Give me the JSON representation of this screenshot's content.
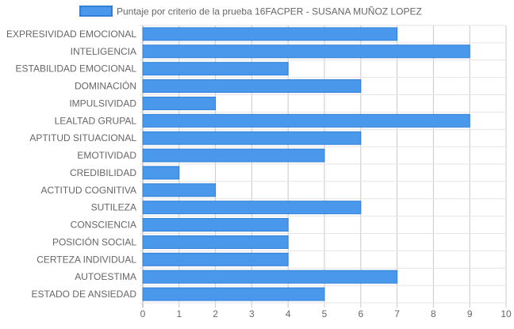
{
  "chart_data": {
    "type": "bar",
    "orientation": "horizontal",
    "categories": [
      "EXPRESIVIDAD EMOCIONAL",
      "INTELIGENCIA",
      "ESTABILIDAD EMOCIONAL",
      "DOMINACIÓN",
      "IMPULSIVIDAD",
      "LEALTAD GRUPAL",
      "APTITUD SITUACIONAL",
      "EMOTIVIDAD",
      "CREDIBILIDAD",
      "ACTITUD COGNITIVA",
      "SUTILEZA",
      "CONSCIENCIA",
      "POSICIÓN SOCIAL",
      "CERTEZA INDIVIDUAL",
      "AUTOESTIMA",
      "ESTADO DE ANSIEDAD"
    ],
    "series": [
      {
        "name": "Puntaje por criterio de la prueba 16FACPER - SUSANA MUÑOZ LOPEZ",
        "values": [
          7,
          9,
          4,
          6,
          2,
          9,
          6,
          5,
          1,
          2,
          6,
          4,
          4,
          4,
          7,
          5
        ],
        "color": "#4a98ec",
        "border_color": "#2f7fd8"
      }
    ],
    "xlim": [
      0,
      10
    ],
    "x_ticks": [
      "0",
      "1",
      "2",
      "3",
      "4",
      "5",
      "6",
      "7",
      "8",
      "9",
      "10"
    ],
    "grid": true,
    "legend_position": "top-center",
    "title": "",
    "xlabel": "",
    "ylabel": ""
  }
}
